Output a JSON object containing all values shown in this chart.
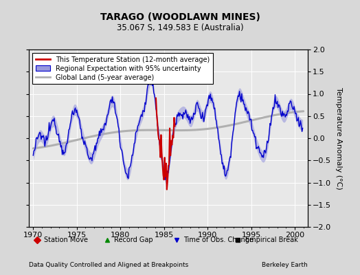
{
  "title": "TARAGO (WOODLAWN MINES)",
  "subtitle": "35.067 S, 149.583 E (Australia)",
  "ylabel": "Temperature Anomaly (°C)",
  "xlabel_left": "Data Quality Controlled and Aligned at Breakpoints",
  "xlabel_right": "Berkeley Earth",
  "xlim": [
    1969.5,
    2001.5
  ],
  "ylim": [
    -2,
    2
  ],
  "yticks": [
    -2,
    -1.5,
    -1,
    -0.5,
    0,
    0.5,
    1,
    1.5,
    2
  ],
  "xticks": [
    1970,
    1975,
    1980,
    1985,
    1990,
    1995,
    2000
  ],
  "bg_color": "#d8d8d8",
  "plot_bg_color": "#e8e8e8",
  "regional_color": "#0000cc",
  "regional_uncertainty_color": "#9999dd",
  "station_color": "#cc0000",
  "global_color": "#b0b0b0",
  "legend_entries": [
    "This Temperature Station (12-month average)",
    "Regional Expectation with 95% uncertainty",
    "Global Land (5-year average)"
  ],
  "bottom_legend": [
    {
      "label": "Station Move",
      "color": "#cc0000",
      "marker": "D"
    },
    {
      "label": "Record Gap",
      "color": "#008800",
      "marker": "^"
    },
    {
      "label": "Time of Obs. Change",
      "color": "#0000cc",
      "marker": "v"
    },
    {
      "label": "Empirical Break",
      "color": "#111111",
      "marker": "s"
    }
  ]
}
